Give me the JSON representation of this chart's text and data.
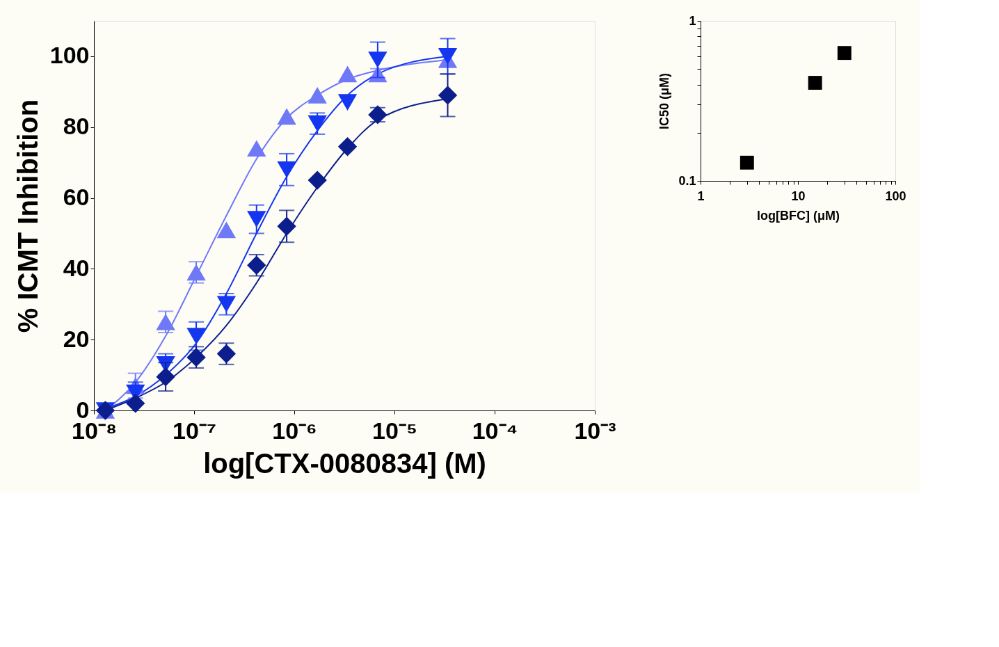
{
  "chart_data": [
    {
      "type": "scatter",
      "xlabel": "log[CTX-0080834] (M)",
      "ylabel": "% ICMT Inhibition",
      "log": "x",
      "xlim": [
        1e-08,
        0.001
      ],
      "ylim": [
        0,
        110
      ],
      "xticks": [
        {
          "value": 1e-08,
          "label": "10⁻⁸"
        },
        {
          "value": 1e-07,
          "label": "10⁻⁷"
        },
        {
          "value": 1e-06,
          "label": "10⁻⁶"
        },
        {
          "value": 1e-05,
          "label": "10⁻⁵"
        },
        {
          "value": 0.0001,
          "label": "10⁻⁴"
        },
        {
          "value": 0.001,
          "label": "10⁻³"
        }
      ],
      "yticks": [
        0,
        20,
        40,
        60,
        80,
        100
      ],
      "grid": false,
      "legend": false,
      "x": [
        1.3e-08,
        2.6e-08,
        5.2e-08,
        1.05e-07,
        2.1e-07,
        4.2e-07,
        8.4e-07,
        1.7e-06,
        3.4e-06,
        6.8e-06,
        3.4e-05
      ],
      "series": [
        {
          "type": "line",
          "marker": "none",
          "line_style": "solid",
          "color": "#6f78f7",
          "values": [
            0,
            8,
            21,
            38,
            55,
            71,
            82.5,
            89,
            93.5,
            96,
            99
          ]
        },
        {
          "type": "line",
          "marker": "none",
          "line_style": "solid",
          "color": "#1436f0",
          "values": [
            0.5,
            4,
            10,
            19,
            33,
            50,
            66,
            79,
            89,
            95,
            100
          ]
        },
        {
          "type": "line",
          "marker": "none",
          "line_style": "solid",
          "color": "#0c1e8c",
          "values": [
            0,
            3.5,
            8,
            15,
            24,
            36,
            50,
            63,
            74,
            82,
            88
          ]
        },
        {
          "type": "scatter",
          "marker": "triangle-up",
          "color": "#6f78f7",
          "values": [
            0,
            7,
            25,
            39,
            51,
            74,
            83,
            89,
            95,
            95,
            99
          ],
          "errors": [
            null,
            3.5,
            3,
            3,
            null,
            null,
            null,
            null,
            null,
            1.5,
            null
          ]
        },
        {
          "type": "scatter",
          "marker": "triangle-down",
          "color": "#1436f0",
          "values": [
            0,
            5,
            13,
            21,
            30,
            54,
            68,
            81,
            87,
            99,
            100
          ],
          "errors": [
            null,
            3,
            3,
            4,
            3,
            4,
            4.5,
            3,
            null,
            5,
            5
          ]
        },
        {
          "type": "scatter",
          "marker": "diamond",
          "color": "#0c1e8c",
          "values": [
            0,
            2,
            9.5,
            15,
            16,
            41,
            52,
            65,
            74.5,
            83.5,
            89
          ],
          "errors": [
            null,
            null,
            4,
            3,
            3,
            3,
            4.5,
            null,
            null,
            2,
            6
          ]
        }
      ]
    },
    {
      "type": "scatter",
      "xlabel": "log[BFC] (μM)",
      "ylabel": "IC50 (μM)",
      "log": "xy",
      "xlim": [
        1,
        100
      ],
      "ylim": [
        0.1,
        1
      ],
      "xticks": [
        1,
        {
          "value": 2,
          "label": null
        },
        {
          "value": 3,
          "label": null
        },
        {
          "value": 4,
          "label": null
        },
        {
          "value": 5,
          "label": null
        },
        {
          "value": 6,
          "label": null
        },
        {
          "value": 7,
          "label": null
        },
        {
          "value": 8,
          "label": null
        },
        {
          "value": 9,
          "label": null
        },
        10,
        {
          "value": 20,
          "label": null
        },
        {
          "value": 30,
          "label": null
        },
        {
          "value": 40,
          "label": null
        },
        {
          "value": 50,
          "label": null
        },
        {
          "value": 60,
          "label": null
        },
        {
          "value": 70,
          "label": null
        },
        {
          "value": 80,
          "label": null
        },
        {
          "value": 90,
          "label": null
        },
        100
      ],
      "yticks": [
        0.1,
        {
          "value": 0.2,
          "label": null
        },
        {
          "value": 0.3,
          "label": null
        },
        {
          "value": 0.4,
          "label": null
        },
        {
          "value": 0.5,
          "label": null
        },
        {
          "value": 0.6,
          "label": null
        },
        {
          "value": 0.7,
          "label": null
        },
        {
          "value": 0.8,
          "label": null
        },
        {
          "value": 0.9,
          "label": null
        },
        1
      ],
      "grid": false,
      "legend": false,
      "marker": "square",
      "x": [
        3,
        15,
        30
      ],
      "series": [
        {
          "color": "#000000",
          "values": [
            0.13,
            0.41,
            0.63
          ]
        }
      ]
    }
  ]
}
